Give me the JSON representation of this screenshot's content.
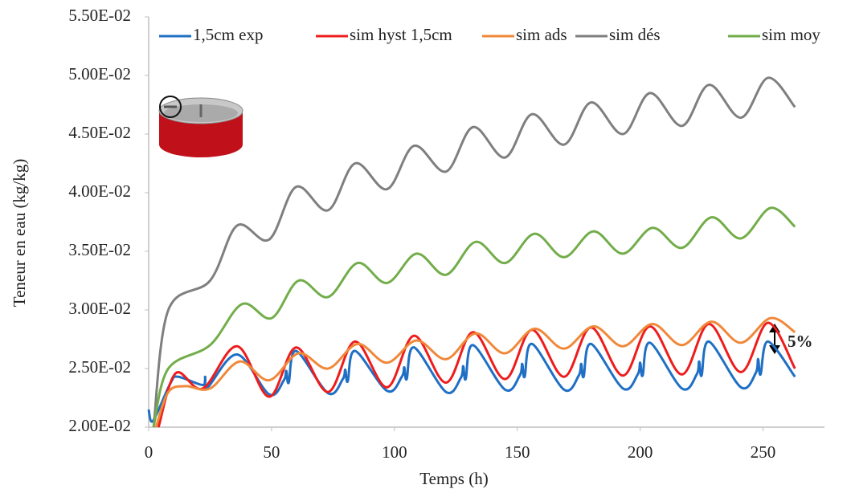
{
  "chart_data": {
    "type": "line",
    "xlabel": "Temps (h)",
    "ylabel": "Teneur en eau (kg/kg)",
    "annotation": "5%",
    "legend": "top",
    "grid": false,
    "xlim": [
      0,
      275
    ],
    "xticks": [
      0,
      50,
      100,
      150,
      200,
      250
    ],
    "ylim": [
      0.02,
      0.055
    ],
    "yticks": [
      {
        "value": 0.02,
        "label": "2.00E-02"
      },
      {
        "value": 0.025,
        "label": "2.50E-02"
      },
      {
        "value": 0.03,
        "label": "3.00E-02"
      },
      {
        "value": 0.035,
        "label": "3.50E-02"
      },
      {
        "value": 0.04,
        "label": "4.00E-02"
      },
      {
        "value": 0.045,
        "label": "4.50E-02"
      },
      {
        "value": 0.05,
        "label": "5.00E-02"
      },
      {
        "value": 0.055,
        "label": "5.50E-02"
      }
    ],
    "series": [
      {
        "name": "1,5cm exp",
        "color": "#1f6fc5",
        "x": [
          0,
          1,
          3,
          9,
          12,
          22,
          23,
          24,
          36,
          49,
          55,
          56,
          57,
          60,
          73,
          79,
          80,
          81,
          84,
          97,
          103,
          104,
          105,
          108,
          121,
          127,
          128,
          129,
          132,
          145,
          151,
          152,
          153,
          156,
          169,
          175,
          176,
          177,
          180,
          193,
          199,
          200,
          201,
          204,
          217,
          223,
          224,
          225,
          228,
          241,
          247,
          248,
          249,
          252,
          263
        ],
        "values": [
          0.0215,
          0.0205,
          0.021,
          0.0238,
          0.0243,
          0.0236,
          0.0243,
          0.0234,
          0.0262,
          0.0228,
          0.024,
          0.0248,
          0.0238,
          0.0265,
          0.0229,
          0.0241,
          0.0249,
          0.0239,
          0.0265,
          0.0231,
          0.0243,
          0.0251,
          0.0241,
          0.0268,
          0.023,
          0.0242,
          0.0252,
          0.0241,
          0.027,
          0.0232,
          0.0244,
          0.0254,
          0.0243,
          0.0271,
          0.0232,
          0.0244,
          0.0254,
          0.0243,
          0.0271,
          0.0233,
          0.0245,
          0.0255,
          0.0244,
          0.0272,
          0.0233,
          0.0245,
          0.0256,
          0.0244,
          0.0273,
          0.0234,
          0.0246,
          0.0258,
          0.0245,
          0.0273,
          0.0243
        ]
      },
      {
        "name": "sim hyst 1,5cm",
        "color": "#ee1c1c",
        "x": [
          4,
          11,
          22,
          36,
          49,
          60,
          73,
          84,
          97,
          108,
          121,
          132,
          145,
          156,
          169,
          180,
          193,
          204,
          217,
          228,
          241,
          252,
          263
        ],
        "values": [
          0.02,
          0.0246,
          0.0233,
          0.0269,
          0.0226,
          0.0268,
          0.023,
          0.0273,
          0.0234,
          0.0278,
          0.0238,
          0.0281,
          0.0241,
          0.0283,
          0.0243,
          0.0285,
          0.0244,
          0.0286,
          0.0245,
          0.0288,
          0.0247,
          0.0289,
          0.025
        ]
      },
      {
        "name": "sim ads",
        "color": "#f0883a",
        "x": [
          3,
          8,
          15,
          25,
          37,
          49,
          61,
          73,
          85,
          97,
          109,
          121,
          133,
          145,
          157,
          169,
          181,
          193,
          205,
          217,
          229,
          241,
          253,
          263
        ],
        "values": [
          0.02,
          0.023,
          0.0235,
          0.0233,
          0.0256,
          0.024,
          0.0263,
          0.025,
          0.0271,
          0.0255,
          0.0274,
          0.0258,
          0.028,
          0.0263,
          0.0284,
          0.0267,
          0.0286,
          0.0269,
          0.0288,
          0.027,
          0.029,
          0.0272,
          0.0293,
          0.0281
        ]
      },
      {
        "name": "sim dés",
        "color": "#7f7f7f",
        "x": [
          2,
          8,
          25,
          36,
          49,
          60,
          73,
          84,
          97,
          108,
          121,
          132,
          145,
          156,
          169,
          180,
          193,
          204,
          217,
          228,
          241,
          252,
          263
        ],
        "values": [
          0.02,
          0.03,
          0.0325,
          0.0372,
          0.036,
          0.0405,
          0.0385,
          0.0425,
          0.0403,
          0.044,
          0.0418,
          0.0456,
          0.043,
          0.0467,
          0.0441,
          0.0477,
          0.045,
          0.0485,
          0.0457,
          0.0492,
          0.0464,
          0.0498,
          0.0473
        ]
      },
      {
        "name": "sim moy",
        "color": "#72ad4a",
        "x": [
          2,
          8,
          25,
          38,
          50,
          61,
          73,
          85,
          97,
          109,
          121,
          133,
          145,
          157,
          169,
          181,
          193,
          205,
          217,
          229,
          241,
          253,
          263
        ],
        "values": [
          0.02,
          0.025,
          0.027,
          0.0305,
          0.0293,
          0.0325,
          0.0311,
          0.034,
          0.0323,
          0.0348,
          0.033,
          0.0358,
          0.034,
          0.0365,
          0.0345,
          0.0367,
          0.0348,
          0.037,
          0.0353,
          0.0379,
          0.0361,
          0.0387,
          0.0371
        ]
      }
    ]
  }
}
